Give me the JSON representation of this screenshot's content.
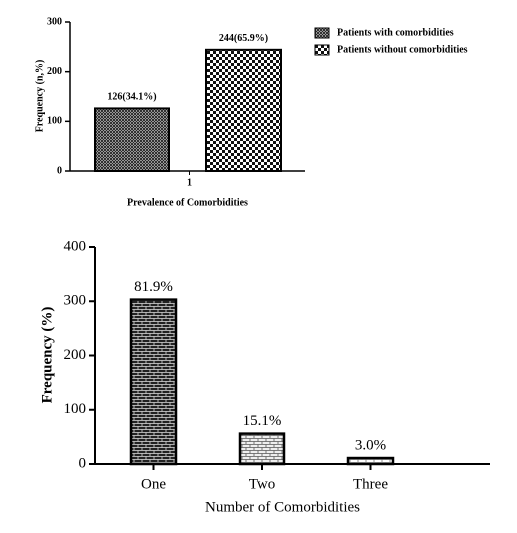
{
  "chart_data": [
    {
      "type": "bar",
      "categories": [
        "1"
      ],
      "series": [
        {
          "name": "Patients with comorbidities",
          "values": [
            126
          ],
          "annotations": [
            "126(34.1%)"
          ]
        },
        {
          "name": "Patients without comorbidities",
          "values": [
            244
          ],
          "annotations": [
            "244(65.9%)"
          ]
        }
      ],
      "ylim": [
        0,
        300
      ],
      "yticks": [
        0,
        100,
        200,
        300
      ],
      "y_label": "Frequency (n,%)",
      "x_label": "Prevalence of Comorbidities",
      "legend": "top-right"
    },
    {
      "type": "bar",
      "categories": [
        "One",
        "Two",
        "Three"
      ],
      "values": [
        303,
        56,
        11
      ],
      "annotations": [
        "81.9%",
        "15.1%",
        "3.0%"
      ],
      "ylim": [
        0,
        400
      ],
      "yticks": [
        0,
        100,
        200,
        300,
        400
      ],
      "y_label": "Frequency (%)",
      "x_label": "Number of Comorbidities"
    }
  ]
}
